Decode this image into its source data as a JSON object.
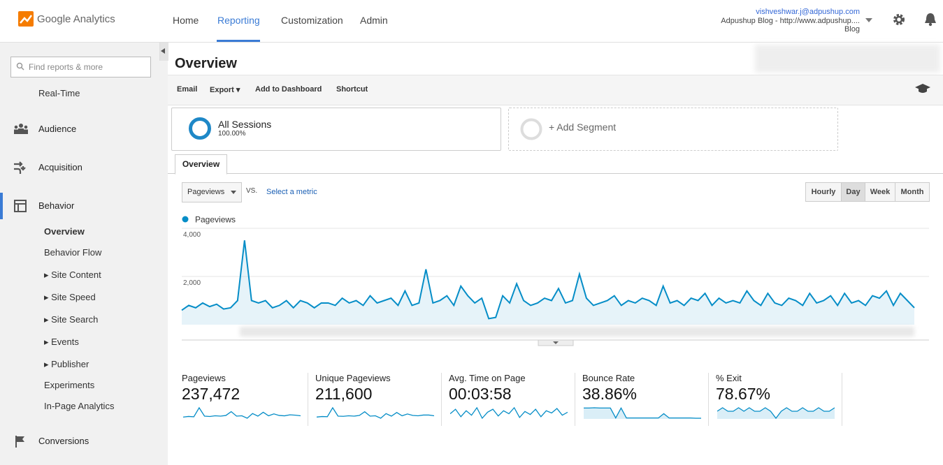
{
  "header": {
    "logo": "Google Analytics",
    "nav": [
      "Home",
      "Reporting",
      "Customization",
      "Admin"
    ],
    "account": {
      "email": "vishveshwar.j@adpushup.com",
      "property": "Adpushup Blog - http://www.adpushup....",
      "view": "Blog"
    }
  },
  "sidebar": {
    "search": "Find reports & more",
    "items": [
      "Real-Time",
      "Audience",
      "Acquisition",
      "Behavior"
    ],
    "sub": [
      "Overview",
      "Behavior Flow",
      "Site Content",
      "Site Speed",
      "Site Search",
      "Events",
      "Publisher",
      "Experiments",
      "In-Page Analytics"
    ],
    "last": "Conversions"
  },
  "main": {
    "title": "Overview",
    "toolbar": [
      "Email",
      "Export",
      "Add to Dashboard",
      "Shortcut"
    ],
    "segment": {
      "name": "All Sessions",
      "share": "100.00%",
      "add": "+ Add Segment"
    },
    "tab": "Overview",
    "metric": "Pageviews",
    "vs": "VS.",
    "select": "Select a metric",
    "periods": [
      "Hourly",
      "Day",
      "Week",
      "Month"
    ]
  },
  "chart_data": {
    "type": "line",
    "series": [
      {
        "name": "Pageviews",
        "color": "#058dc7",
        "values": [
          600,
          800,
          700,
          900,
          750,
          850,
          650,
          700,
          1000,
          3500,
          1000,
          900,
          1000,
          700,
          800,
          1000,
          700,
          1000,
          900,
          700,
          900,
          900,
          800,
          1100,
          900,
          1000,
          800,
          1200,
          900,
          1000,
          1100,
          800,
          1400,
          800,
          900,
          2300,
          900,
          1000,
          1200,
          800,
          1600,
          1200,
          900,
          1100,
          250,
          300,
          1200,
          900,
          1700,
          1000,
          800,
          900,
          1100,
          1000,
          1500,
          900,
          1000,
          2100,
          1100,
          800,
          900,
          1000,
          1200,
          800,
          1000,
          900,
          1100,
          1000,
          800,
          1600,
          900,
          1000,
          800,
          1100,
          1000,
          1300,
          800,
          1100,
          900,
          1000,
          900,
          1400,
          1000,
          800,
          1300,
          900,
          800,
          1100,
          1000,
          800,
          1300,
          900,
          1000,
          1200,
          800,
          1300,
          900,
          1000,
          800,
          1200,
          1100,
          1400,
          800,
          1300,
          1000,
          700
        ]
      }
    ],
    "ylim": [
      0,
      4000
    ],
    "yticks": [
      {
        "value": 2000,
        "label": "2,000"
      },
      {
        "value": 4000,
        "label": "4,000"
      }
    ],
    "grid": true
  },
  "scorecards": [
    {
      "label": "Pageviews",
      "value": "237,472",
      "spark": [
        600,
        800,
        700,
        3500,
        900,
        800,
        1000,
        900,
        1100,
        2300,
        900,
        1000,
        250,
        1700,
        900,
        2100,
        1000,
        1600,
        1100,
        1000,
        1300,
        1200,
        1000
      ]
    },
    {
      "label": "Unique Pageviews",
      "value": "211,600",
      "spark": [
        550,
        700,
        650,
        3100,
        800,
        750,
        900,
        800,
        1000,
        2000,
        800,
        900,
        230,
        1500,
        800,
        1800,
        900,
        1400,
        1000,
        900,
        1100,
        1100,
        900
      ]
    },
    {
      "label": "Avg. Time on Page",
      "value": "00:03:58",
      "spark": [
        230,
        260,
        210,
        250,
        220,
        270,
        200,
        240,
        260,
        215,
        250,
        230,
        270,
        205,
        245,
        225,
        260,
        210,
        250,
        235,
        265,
        220,
        240
      ]
    },
    {
      "label": "Bounce Rate",
      "value": "38.86%",
      "spark": [
        40,
        40,
        41,
        40,
        40,
        40,
        5,
        40,
        5,
        5,
        5,
        5,
        5,
        5,
        5,
        20,
        5,
        5,
        5,
        5,
        5,
        4,
        4
      ]
    },
    {
      "label": "% Exit",
      "value": "78.67%",
      "spark": [
        78,
        79,
        78,
        78,
        79,
        78,
        79,
        78,
        78,
        79,
        78,
        76,
        78,
        79,
        78,
        78,
        79,
        78,
        78,
        79,
        78,
        78,
        79
      ]
    }
  ]
}
